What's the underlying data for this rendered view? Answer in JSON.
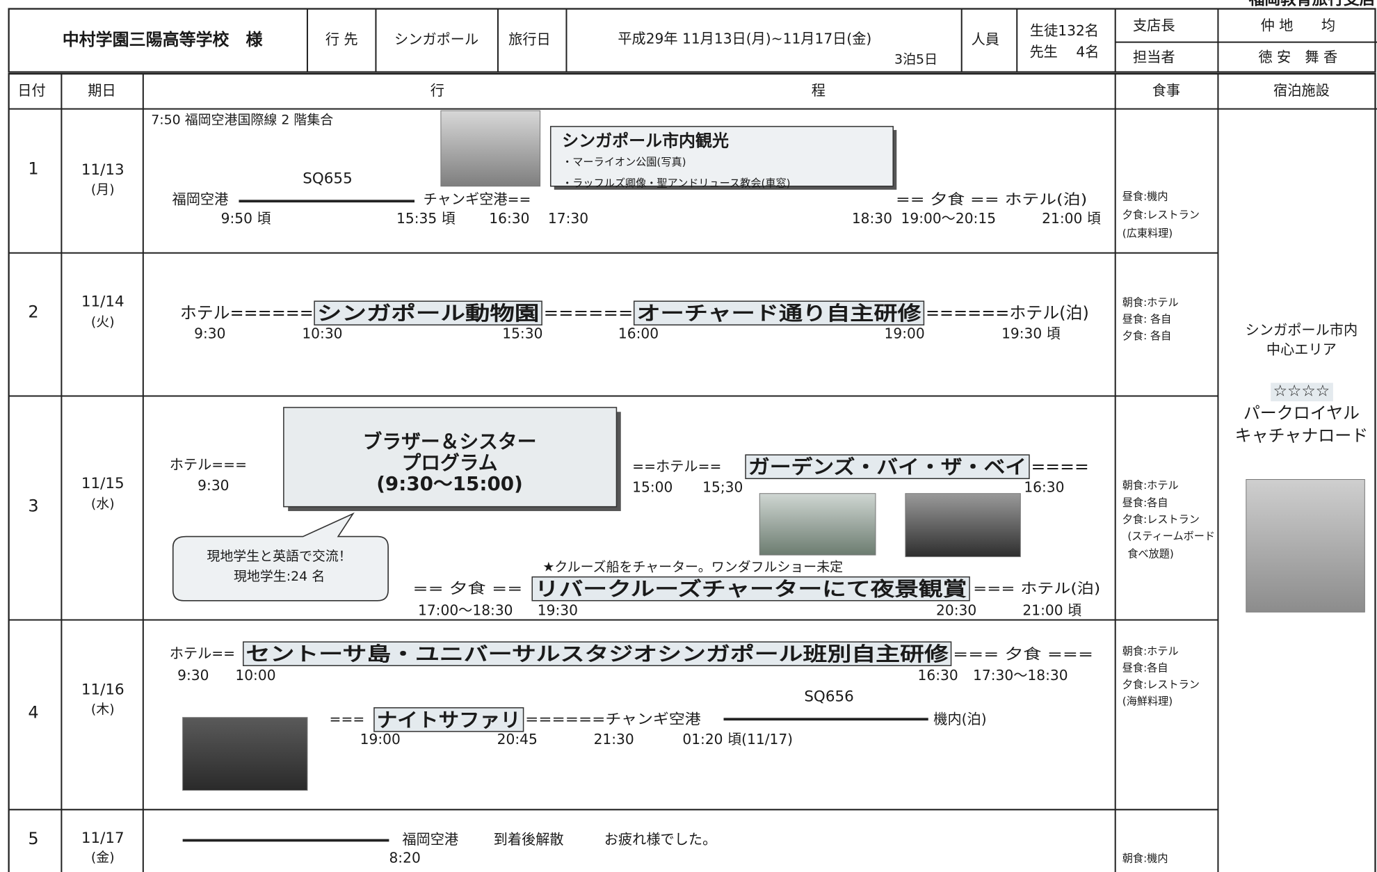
{
  "header": {
    "branch": "福岡教育旅行支店",
    "school": "中村学園三陽高等学校　様",
    "destination_label": "行 先",
    "destination": "シンガポール",
    "date_label": "旅行日",
    "dates": "平成29年 11月13日(月)~11月17日(金)",
    "duration": "3泊5日",
    "people_label": "人員",
    "students": "生徒132名",
    "teachers": "先生　 4名",
    "manager_label": "支店長",
    "manager": "仲 地　　均",
    "staff_label": "担当者",
    "staff": "徳 安　舞 香"
  },
  "columns": [
    "日付",
    "期日",
    "行",
    "程",
    "食事",
    "宿泊施設"
  ],
  "days": [
    {
      "day": "1",
      "date": "11/13",
      "weekday": "(月)",
      "schedule": [
        "7:50 福岡空港国際線 2 階集合",
        "シンガポール市内観光",
        "・マーライオン公園(写真)",
        "・ラッフルズ卿像・聖アンドリュース教会(車窓)",
        "SQ655",
        "福岡空港",
        "チャンギ空港==",
        "== 夕食 == ホテル(泊)"
      ],
      "times": [
        "9:50 頃",
        "15:35 頃",
        "16:30",
        "17:30",
        "18:30",
        "19:00～20:15",
        "21:00 頃"
      ],
      "meals": [
        "昼食:機内",
        "夕食:レストラン",
        "(広東料理)"
      ]
    },
    {
      "day": "2",
      "date": "11/14",
      "weekday": "(火)",
      "schedule": [
        "ホテル======",
        "シンガポール動物園",
        "======",
        "オーチャード通り自主研修",
        "======ホテル(泊)"
      ],
      "times": [
        "9:30",
        "10:30",
        "15:30",
        "16:00",
        "19:00",
        "19:30 頃"
      ],
      "meals": [
        "朝食:ホテル",
        "昼食: 各自",
        "夕食: 各自"
      ]
    },
    {
      "day": "3",
      "date": "11/15",
      "weekday": "(水)",
      "schedule": [
        "ホテル===",
        "ブラザー＆シスター",
        "プログラム",
        "(9:30～15:00)",
        "現地学生と英語で交流！",
        "現地学生:24 名",
        "==ホテル==",
        "ガーデンズ・バイ・ザ・ベイ",
        "====",
        "★クルーズ船をチャーター。ワンダフルショー未定",
        "== 夕食 ==",
        "リバークルーズチャーターにて夜景観賞",
        "=== ホテル(泊)"
      ],
      "times": [
        "9:30",
        "15:00",
        "15;30",
        "16:30",
        "17:00～18:30",
        "19:30",
        "20:30",
        "21:00 頃"
      ],
      "meals": [
        "朝食:ホテル",
        "昼食:各自",
        "夕食:レストラン",
        "(スティームボード",
        "食べ放題)"
      ]
    },
    {
      "day": "4",
      "date": "11/16",
      "weekday": "(木)",
      "schedule": [
        "ホテル==",
        "セントーサ島・ユニバーサルスタジオシンガポール班別自主研修",
        "=== 夕食 ===",
        "SQ656",
        "===",
        "ナイトサファリ",
        "======チャンギ空港",
        "機内(泊)"
      ],
      "times": [
        "9:30",
        "10:00",
        "16:30",
        "17:30～18:30",
        "19:00",
        "20:45",
        "21:30",
        "01:20 頃(11/17)"
      ],
      "meals": [
        "朝食:ホテル",
        "昼食:各自",
        "夕食:レストラン",
        "(海鮮料理)"
      ]
    },
    {
      "day": "5",
      "date": "11/17",
      "weekday": "(金)",
      "schedule": [
        "福岡空港",
        "到着後解散",
        "お疲れ様でした。"
      ],
      "times": [
        "8:20"
      ],
      "meals": [
        "朝食:機内"
      ]
    }
  ],
  "accommodation": {
    "area": [
      "シンガポール市内",
      "中心エリア"
    ],
    "rating": "☆☆☆☆",
    "hotel": [
      "パークロイヤル",
      "キャチャナロード"
    ]
  }
}
